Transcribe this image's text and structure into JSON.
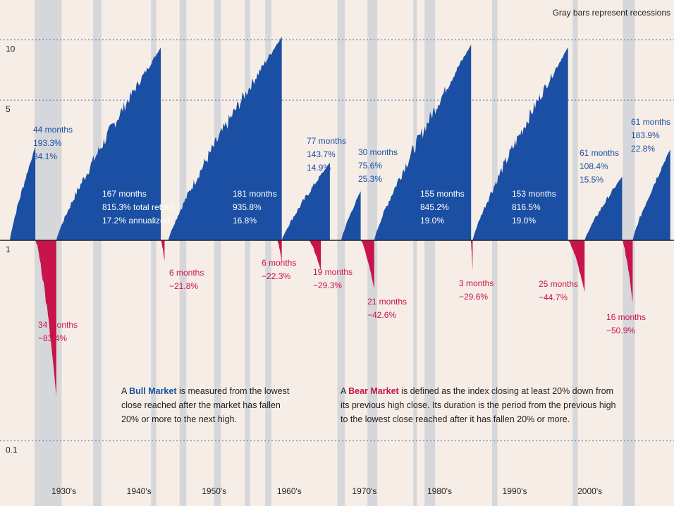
{
  "chart_data": {
    "type": "area",
    "scale": "log",
    "ylim": [
      0.1,
      13
    ],
    "y_ticks": [
      "10",
      "5",
      "1",
      "0.1"
    ],
    "x_tick_labels": [
      "1930's",
      "1940's",
      "1950's",
      "1960's",
      "1970's",
      "1980's",
      "1990's",
      "2000's"
    ],
    "recession_note": "Gray bars represent recessions",
    "recessions": [
      {
        "start": 1929.6,
        "end": 1933.2
      },
      {
        "start": 1937.4,
        "end": 1938.5
      },
      {
        "start": 1945.1,
        "end": 1945.8
      },
      {
        "start": 1948.9,
        "end": 1949.8
      },
      {
        "start": 1953.5,
        "end": 1954.4
      },
      {
        "start": 1957.6,
        "end": 1958.3
      },
      {
        "start": 1960.3,
        "end": 1961.1
      },
      {
        "start": 1969.9,
        "end": 1970.9
      },
      {
        "start": 1973.9,
        "end": 1975.2
      },
      {
        "start": 1980.0,
        "end": 1980.5
      },
      {
        "start": 1981.5,
        "end": 1982.9
      },
      {
        "start": 1990.5,
        "end": 1991.2
      },
      {
        "start": 2001.2,
        "end": 2001.9
      },
      {
        "start": 2007.9,
        "end": 2009.5
      }
    ],
    "bull_markets": [
      {
        "start": 1926.3,
        "end": 1929.7,
        "peak": 2.93,
        "months": "44 months",
        "total_return": "193.3%",
        "annualized": "34.1%"
      },
      {
        "start": 1932.5,
        "end": 1946.4,
        "peak": 9.15,
        "months": "167 months",
        "total_return": "815.3% total return",
        "annualized": "17.2% annualized"
      },
      {
        "start": 1947.4,
        "end": 1962.5,
        "peak": 10.36,
        "months": "181 months",
        "total_return": "935.8%",
        "annualized": "16.8%"
      },
      {
        "start": 1962.5,
        "end": 1968.9,
        "peak": 2.44,
        "months": "77 months",
        "total_return": "143.7%",
        "annualized": "14.9%"
      },
      {
        "start": 1970.4,
        "end": 1973.0,
        "peak": 1.76,
        "months": "30 months",
        "total_return": "75.6%",
        "annualized": "25.3%"
      },
      {
        "start": 1974.8,
        "end": 1987.7,
        "peak": 9.45,
        "months": "155 months",
        "total_return": "845.2%",
        "annualized": "19.0%"
      },
      {
        "start": 1987.9,
        "end": 2000.6,
        "peak": 9.17,
        "months": "153 months",
        "total_return": "816.5%",
        "annualized": "19.0%"
      },
      {
        "start": 2002.8,
        "end": 2007.8,
        "peak": 2.08,
        "months": "61 months",
        "total_return": "108.4%",
        "annualized": "15.5%"
      },
      {
        "start": 2009.2,
        "end": 2014.2,
        "peak": 2.84,
        "months": "61 months",
        "total_return": "183.9%",
        "annualized": "22.8%"
      }
    ],
    "bear_markets": [
      {
        "start": 1929.7,
        "end": 1932.5,
        "trough": 0.166,
        "months": "34 months",
        "decline": "−83.4%"
      },
      {
        "start": 1946.4,
        "end": 1946.9,
        "trough": 0.782,
        "months": "6 months",
        "decline": "−21.8%"
      },
      {
        "start": 1961.9,
        "end": 1962.5,
        "trough": 0.777,
        "months": "6 months",
        "decline": "−22.3%"
      },
      {
        "start": 1966.1,
        "end": 1967.7,
        "trough": 0.707,
        "months": "19 months",
        "decline": "−29.3%"
      },
      {
        "start": 1973.0,
        "end": 1974.8,
        "trough": 0.574,
        "months": "21 months",
        "decline": "−42.6%"
      },
      {
        "start": 1987.65,
        "end": 1987.9,
        "trough": 0.704,
        "months": "3 months",
        "decline": "−29.6%"
      },
      {
        "start": 2000.6,
        "end": 2002.8,
        "trough": 0.553,
        "months": "25 months",
        "decline": "−44.7%"
      },
      {
        "start": 2007.8,
        "end": 2009.2,
        "trough": 0.491,
        "months": "16 months",
        "decline": "−50.9%"
      }
    ],
    "colors": {
      "bull": "#1a4fa3",
      "bear": "#c8144a",
      "recession": "#d6d7da",
      "background": "#f6ede6",
      "grid": "#5a8ec6",
      "baseline": "#222222"
    }
  },
  "notes": {
    "bull": {
      "prefix": "A ",
      "term": "Bull Market",
      "line1": " is measured from the lowest",
      "line2": "close reached after the market has fallen",
      "line3": "20% or more to the next high."
    },
    "bear": {
      "prefix": "A ",
      "term": "Bear Market",
      "line1": " is defined as the index closing at least 20% down from",
      "line2": "its previous high close. Its duration is the period from the previous high",
      "line3": "to the lowest close reached after it has fallen 20% or more."
    }
  }
}
